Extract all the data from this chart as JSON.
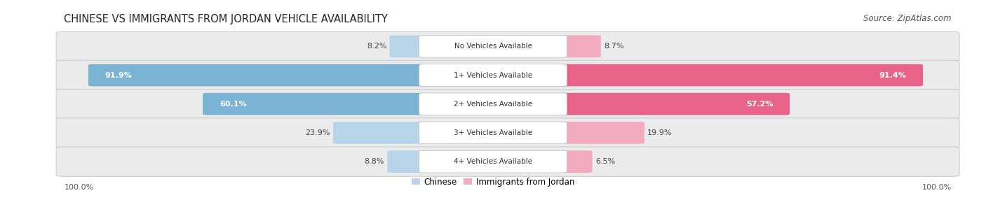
{
  "title": "CHINESE VS IMMIGRANTS FROM JORDAN VEHICLE AVAILABILITY",
  "source": "Source: ZipAtlas.com",
  "categories": [
    "No Vehicles Available",
    "1+ Vehicles Available",
    "2+ Vehicles Available",
    "3+ Vehicles Available",
    "4+ Vehicles Available"
  ],
  "chinese_values": [
    8.2,
    91.9,
    60.1,
    23.9,
    8.8
  ],
  "jordan_values": [
    8.7,
    91.4,
    57.2,
    19.9,
    6.5
  ],
  "chinese_color_large": "#7ab3d4",
  "chinese_color_small": "#b8d4e8",
  "jordan_color_large": "#e8638a",
  "jordan_color_small": "#f2aabe",
  "row_bg": "#ebebeb",
  "max_value": 100.0,
  "legend_chinese": "Chinese",
  "legend_jordan": "Immigrants from Jordan",
  "bottom_label": "100.0%",
  "title_fontsize": 10.5,
  "source_fontsize": 8.5,
  "value_fontsize": 8,
  "category_fontsize": 7.5,
  "legend_fontsize": 8.5
}
